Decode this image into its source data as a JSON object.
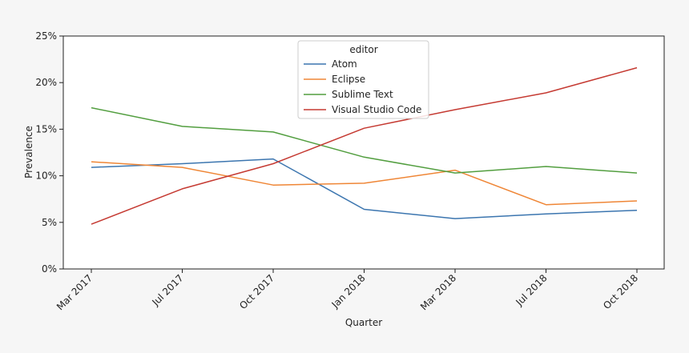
{
  "chart_data": {
    "type": "line",
    "title": "",
    "xlabel": "Quarter",
    "ylabel": "Prevalence",
    "categories": [
      "Mar 2017",
      "Jul 2017",
      "Oct 2017",
      "Jan 2018",
      "Mar 2018",
      "Jul 2018",
      "Oct 2018"
    ],
    "ylim": [
      0,
      25
    ],
    "yticks": [
      0,
      5,
      10,
      15,
      20,
      25
    ],
    "ytick_labels": [
      "0%",
      "5%",
      "10%",
      "15%",
      "20%",
      "25%"
    ],
    "grid": false,
    "legend": {
      "title": "editor",
      "placement": "top-center"
    },
    "series": [
      {
        "name": "Atom",
        "color": "#3b75af",
        "values": [
          10.9,
          11.3,
          11.8,
          6.4,
          5.4,
          5.9,
          6.3
        ]
      },
      {
        "name": "Eclipse",
        "color": "#ef8636",
        "values": [
          11.5,
          10.9,
          9.0,
          9.2,
          10.6,
          6.9,
          7.3
        ]
      },
      {
        "name": "Sublime Text",
        "color": "#529e3f",
        "values": [
          17.3,
          15.3,
          14.7,
          12.0,
          10.3,
          11.0,
          10.3
        ]
      },
      {
        "name": "Visual Studio Code",
        "color": "#c53a32",
        "values": [
          4.8,
          8.6,
          11.3,
          15.1,
          17.1,
          18.9,
          21.6
        ]
      }
    ]
  }
}
